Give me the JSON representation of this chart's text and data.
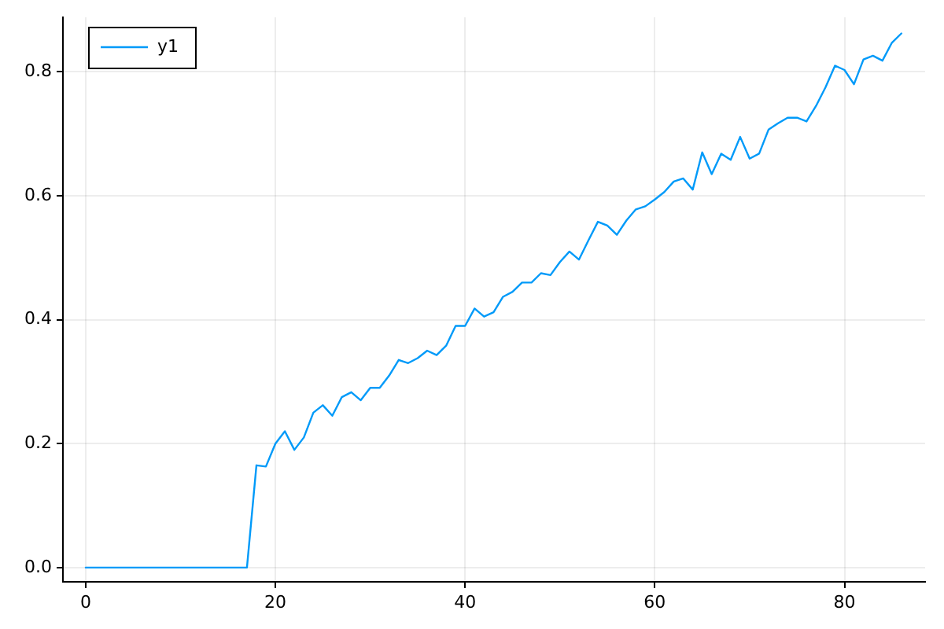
{
  "chart_data": {
    "type": "line",
    "x": [
      0,
      1,
      2,
      3,
      4,
      5,
      6,
      7,
      8,
      9,
      10,
      11,
      12,
      13,
      14,
      15,
      16,
      17,
      18,
      19,
      20,
      21,
      22,
      23,
      24,
      25,
      26,
      27,
      28,
      29,
      30,
      31,
      32,
      33,
      34,
      35,
      36,
      37,
      38,
      39,
      40,
      41,
      42,
      43,
      44,
      45,
      46,
      47,
      48,
      49,
      50,
      51,
      52,
      53,
      54,
      55,
      56,
      57,
      58,
      59,
      60,
      61,
      62,
      63,
      64,
      65,
      66,
      67,
      68,
      69,
      70,
      71,
      72,
      73,
      74,
      75,
      76,
      77,
      78,
      79,
      80,
      81,
      82,
      83,
      84,
      85,
      86
    ],
    "series": [
      {
        "name": "y1",
        "color": "#009af9",
        "values": [
          0,
          0,
          0,
          0,
          0,
          0,
          0,
          0,
          0,
          0,
          0,
          0,
          0,
          0,
          0,
          0,
          0,
          0,
          0.165,
          0.163,
          0.2,
          0.22,
          0.19,
          0.21,
          0.25,
          0.262,
          0.245,
          0.275,
          0.283,
          0.27,
          0.29,
          0.29,
          0.31,
          0.335,
          0.33,
          0.338,
          0.35,
          0.343,
          0.358,
          0.39,
          0.39,
          0.418,
          0.405,
          0.412,
          0.437,
          0.445,
          0.46,
          0.46,
          0.475,
          0.472,
          0.493,
          0.51,
          0.497,
          0.528,
          0.558,
          0.552,
          0.537,
          0.56,
          0.578,
          0.583,
          0.594,
          0.606,
          0.623,
          0.628,
          0.61,
          0.67,
          0.635,
          0.668,
          0.658,
          0.695,
          0.66,
          0.668,
          0.707,
          0.717,
          0.726,
          0.726,
          0.72,
          0.745,
          0.775,
          0.81,
          0.803,
          0.78,
          0.82,
          0.826,
          0.818,
          0.847,
          0.862
        ]
      }
    ],
    "xlim": [
      -2.4,
      88.5
    ],
    "ylim": [
      -0.023,
      0.888
    ],
    "xticks": [
      0,
      20,
      40,
      60,
      80
    ],
    "yticks": [
      {
        "value": 0,
        "label": "0.0"
      },
      {
        "value": 0.2,
        "label": "0.2"
      },
      {
        "value": 0.4,
        "label": "0.4"
      },
      {
        "value": 0.6,
        "label": "0.6"
      },
      {
        "value": 0.8,
        "label": "0.8"
      }
    ],
    "grid": true,
    "legend": "top left",
    "marker": "none",
    "line_style": "solid"
  }
}
